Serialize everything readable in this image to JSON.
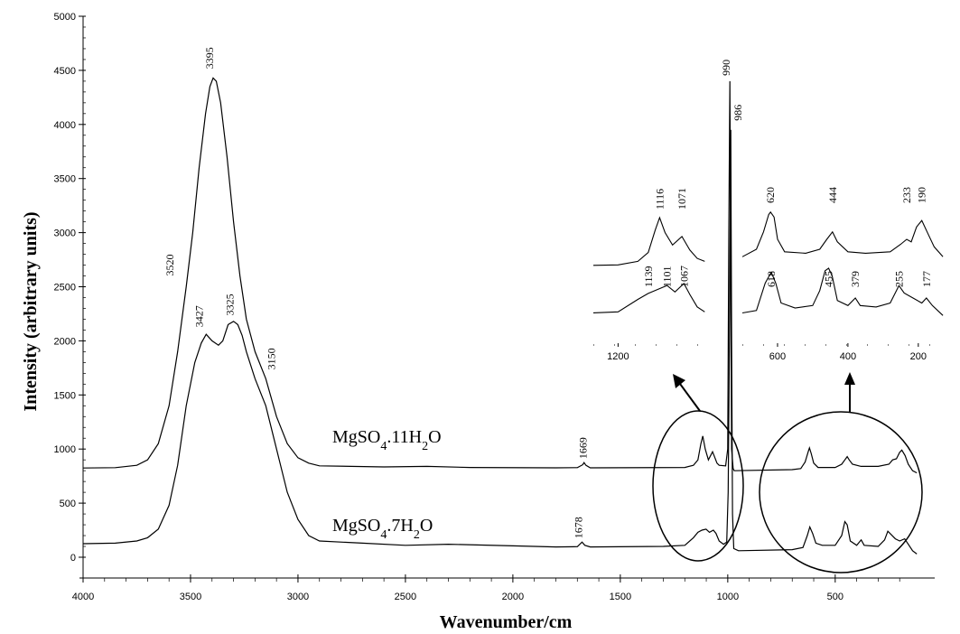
{
  "chart_data": [
    {
      "type": "line",
      "title": "",
      "xlabel": "Wavenumber/cm",
      "ylabel": "Intensity (arbitrary units)",
      "xlim": [
        4000,
        100
      ],
      "ylim": [
        0,
        5000
      ],
      "x_reversed": true,
      "x_ticks": [
        "4000",
        "3500",
        "3000",
        "2500",
        "2000",
        "1500",
        "1000",
        "500"
      ],
      "y_ticks": [
        "0",
        "500",
        "1000",
        "1500",
        "2000",
        "2500",
        "3000",
        "3500",
        "4000",
        "4500",
        "5000"
      ],
      "grid": false,
      "series": [
        {
          "name": "MgSO4.11H2O",
          "name_parts": {
            "pre": "MgSO",
            "sub1": "4",
            "mid": ".11H",
            "sub2": "2",
            "post": "O"
          },
          "color": "#000000",
          "points": [
            [
              4000,
              825
            ],
            [
              3850,
              828
            ],
            [
              3750,
              850
            ],
            [
              3700,
              900
            ],
            [
              3650,
              1050
            ],
            [
              3600,
              1400
            ],
            [
              3560,
              1900
            ],
            [
              3520,
              2500
            ],
            [
              3490,
              3000
            ],
            [
              3460,
              3600
            ],
            [
              3430,
              4100
            ],
            [
              3410,
              4350
            ],
            [
              3395,
              4430
            ],
            [
              3380,
              4400
            ],
            [
              3360,
              4200
            ],
            [
              3330,
              3700
            ],
            [
              3300,
              3100
            ],
            [
              3270,
              2600
            ],
            [
              3240,
              2200
            ],
            [
              3200,
              1900
            ],
            [
              3150,
              1650
            ],
            [
              3100,
              1300
            ],
            [
              3050,
              1050
            ],
            [
              3000,
              920
            ],
            [
              2950,
              870
            ],
            [
              2900,
              845
            ],
            [
              2600,
              835
            ],
            [
              2400,
              840
            ],
            [
              2200,
              830
            ],
            [
              1800,
              826
            ],
            [
              1700,
              828
            ],
            [
              1675,
              855
            ],
            [
              1669,
              875
            ],
            [
              1660,
              850
            ],
            [
              1640,
              826
            ],
            [
              1200,
              830
            ],
            [
              1160,
              850
            ],
            [
              1139,
              900
            ],
            [
              1125,
              1050
            ],
            [
              1116,
              1120
            ],
            [
              1105,
              1000
            ],
            [
              1090,
              900
            ],
            [
              1071,
              975
            ],
            [
              1060,
              920
            ],
            [
              1050,
              870
            ],
            [
              1040,
              850
            ],
            [
              1010,
              845
            ],
            [
              1000,
              1000
            ],
            [
              995,
              3000
            ],
            [
              990,
              4400
            ],
            [
              986,
              2500
            ],
            [
              982,
              1000
            ],
            [
              975,
              820
            ],
            [
              970,
              800
            ],
            [
              700,
              810
            ],
            [
              660,
              820
            ],
            [
              640,
              880
            ],
            [
              625,
              980
            ],
            [
              620,
              1010
            ],
            [
              612,
              960
            ],
            [
              600,
              870
            ],
            [
              580,
              830
            ],
            [
              500,
              830
            ],
            [
              470,
              860
            ],
            [
              455,
              900
            ],
            [
              444,
              930
            ],
            [
              435,
              900
            ],
            [
              420,
              860
            ],
            [
              380,
              840
            ],
            [
              300,
              840
            ],
            [
              250,
              860
            ],
            [
              233,
              900
            ],
            [
              215,
              910
            ],
            [
              200,
              970
            ],
            [
              190,
              990
            ],
            [
              175,
              940
            ],
            [
              160,
              860
            ],
            [
              140,
              800
            ],
            [
              120,
              780
            ]
          ]
        },
        {
          "name": "MgSO4.7H2O",
          "name_parts": {
            "pre": "MgSO",
            "sub1": "4",
            "mid": ".7H",
            "sub2": "2",
            "post": "O"
          },
          "color": "#000000",
          "points": [
            [
              4000,
              125
            ],
            [
              3850,
              130
            ],
            [
              3750,
              150
            ],
            [
              3700,
              180
            ],
            [
              3650,
              260
            ],
            [
              3600,
              480
            ],
            [
              3560,
              850
            ],
            [
              3520,
              1400
            ],
            [
              3480,
              1800
            ],
            [
              3450,
              1980
            ],
            [
              3427,
              2060
            ],
            [
              3400,
              2000
            ],
            [
              3370,
              1960
            ],
            [
              3350,
              2000
            ],
            [
              3325,
              2150
            ],
            [
              3300,
              2180
            ],
            [
              3280,
              2150
            ],
            [
              3260,
              2050
            ],
            [
              3240,
              1900
            ],
            [
              3200,
              1650
            ],
            [
              3150,
              1400
            ],
            [
              3100,
              1000
            ],
            [
              3050,
              600
            ],
            [
              3000,
              350
            ],
            [
              2950,
              200
            ],
            [
              2900,
              150
            ],
            [
              2700,
              130
            ],
            [
              2500,
              110
            ],
            [
              2300,
              120
            ],
            [
              2000,
              105
            ],
            [
              1800,
              95
            ],
            [
              1700,
              98
            ],
            [
              1678,
              140
            ],
            [
              1665,
              110
            ],
            [
              1640,
              95
            ],
            [
              1300,
              100
            ],
            [
              1200,
              110
            ],
            [
              1160,
              180
            ],
            [
              1139,
              230
            ],
            [
              1120,
              250
            ],
            [
              1101,
              260
            ],
            [
              1085,
              230
            ],
            [
              1067,
              250
            ],
            [
              1055,
              220
            ],
            [
              1040,
              150
            ],
            [
              1020,
              120
            ],
            [
              1005,
              140
            ],
            [
              998,
              600
            ],
            [
              992,
              2000
            ],
            [
              986,
              3950
            ],
            [
              982,
              2000
            ],
            [
              978,
              400
            ],
            [
              972,
              80
            ],
            [
              950,
              60
            ],
            [
              700,
              70
            ],
            [
              650,
              90
            ],
            [
              630,
              200
            ],
            [
              618,
              280
            ],
            [
              605,
              220
            ],
            [
              590,
              130
            ],
            [
              560,
              110
            ],
            [
              500,
              110
            ],
            [
              470,
              200
            ],
            [
              455,
              330
            ],
            [
              444,
              300
            ],
            [
              430,
              150
            ],
            [
              400,
              110
            ],
            [
              379,
              160
            ],
            [
              365,
              110
            ],
            [
              300,
              100
            ],
            [
              270,
              160
            ],
            [
              255,
              240
            ],
            [
              240,
              210
            ],
            [
              220,
              170
            ],
            [
              200,
              150
            ],
            [
              177,
              170
            ],
            [
              160,
              120
            ],
            [
              140,
              60
            ],
            [
              120,
              30
            ]
          ]
        }
      ],
      "annotations": [
        "3520",
        "3395",
        "3427",
        "3325",
        "3150",
        "1669",
        "1678",
        "990",
        "986"
      ],
      "highlights": [
        {
          "target": "inset-left",
          "center_x": 1100
        },
        {
          "target": "inset-right",
          "center_x": 400
        }
      ]
    },
    {
      "type": "line",
      "title": "",
      "role": "inset",
      "xlim": [
        1250,
        1020
      ],
      "x_ticks": [
        "1200"
      ],
      "series": [
        {
          "name": "",
          "points": [
            [
              1250,
              0.04
            ],
            [
              1200,
              0.05
            ],
            [
              1160,
              0.12
            ],
            [
              1139,
              0.3
            ],
            [
              1125,
              0.75
            ],
            [
              1116,
              1.0
            ],
            [
              1105,
              0.7
            ],
            [
              1090,
              0.45
            ],
            [
              1071,
              0.62
            ],
            [
              1055,
              0.35
            ],
            [
              1040,
              0.18
            ],
            [
              1025,
              0.12
            ]
          ]
        },
        {
          "name": "",
          "points": [
            [
              1250,
              0.03
            ],
            [
              1200,
              0.05
            ],
            [
              1160,
              0.3
            ],
            [
              1139,
              0.42
            ],
            [
              1120,
              0.5
            ],
            [
              1101,
              0.58
            ],
            [
              1085,
              0.45
            ],
            [
              1067,
              0.62
            ],
            [
              1055,
              0.4
            ],
            [
              1040,
              0.15
            ],
            [
              1025,
              0.05
            ]
          ]
        }
      ],
      "labels_top": [
        "1116",
        "1071"
      ],
      "labels_bottom": [
        "1139",
        "1101",
        "1067"
      ]
    },
    {
      "type": "line",
      "title": "",
      "role": "inset",
      "xlim": [
        700,
        120
      ],
      "x_ticks": [
        "600",
        "400",
        "200"
      ],
      "series": [
        {
          "name": "",
          "points": [
            [
              700,
              0.05
            ],
            [
              660,
              0.2
            ],
            [
              640,
              0.55
            ],
            [
              625,
              0.9
            ],
            [
              620,
              0.95
            ],
            [
              610,
              0.85
            ],
            [
              600,
              0.4
            ],
            [
              580,
              0.15
            ],
            [
              520,
              0.12
            ],
            [
              480,
              0.2
            ],
            [
              460,
              0.4
            ],
            [
              444,
              0.55
            ],
            [
              430,
              0.35
            ],
            [
              400,
              0.15
            ],
            [
              350,
              0.12
            ],
            [
              280,
              0.15
            ],
            [
              250,
              0.3
            ],
            [
              233,
              0.4
            ],
            [
              220,
              0.35
            ],
            [
              205,
              0.65
            ],
            [
              190,
              0.78
            ],
            [
              175,
              0.55
            ],
            [
              155,
              0.25
            ],
            [
              130,
              0.05
            ]
          ]
        },
        {
          "name": "",
          "points": [
            [
              700,
              0.1
            ],
            [
              660,
              0.15
            ],
            [
              635,
              0.7
            ],
            [
              618,
              0.92
            ],
            [
              605,
              0.7
            ],
            [
              590,
              0.3
            ],
            [
              550,
              0.2
            ],
            [
              500,
              0.25
            ],
            [
              480,
              0.55
            ],
            [
              465,
              0.95
            ],
            [
              455,
              1.0
            ],
            [
              445,
              0.85
            ],
            [
              430,
              0.35
            ],
            [
              400,
              0.25
            ],
            [
              379,
              0.4
            ],
            [
              365,
              0.25
            ],
            [
              320,
              0.22
            ],
            [
              280,
              0.3
            ],
            [
              255,
              0.65
            ],
            [
              240,
              0.5
            ],
            [
              215,
              0.4
            ],
            [
              190,
              0.3
            ],
            [
              177,
              0.4
            ],
            [
              160,
              0.25
            ],
            [
              130,
              0.05
            ]
          ]
        }
      ],
      "labels_top": [
        "620",
        "444",
        "233",
        "190"
      ],
      "labels_bottom": [
        "618",
        "455",
        "379",
        "255",
        "177"
      ]
    }
  ]
}
